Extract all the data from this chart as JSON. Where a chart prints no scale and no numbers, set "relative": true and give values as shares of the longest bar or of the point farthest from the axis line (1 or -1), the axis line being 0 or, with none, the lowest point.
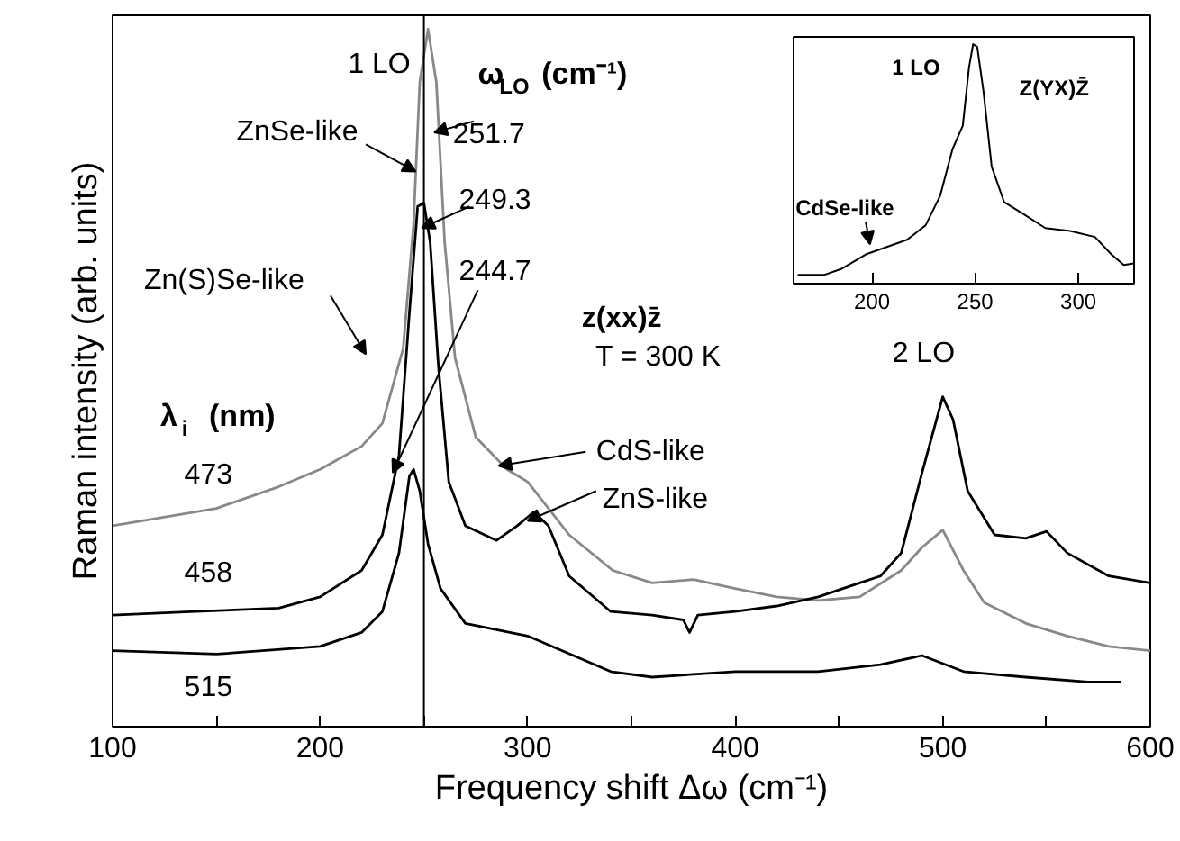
{
  "chart_data": [
    {
      "type": "line",
      "xlabel": "Frequency shift Δω (cm⁻¹)",
      "ylabel": "Raman intensity (arb. units)",
      "relative": true,
      "xlim": [
        100,
        600
      ],
      "xticks": [
        100,
        {
          "value": 150,
          "label": null
        },
        200,
        {
          "value": 250,
          "label": null
        },
        300,
        {
          "value": 350,
          "label": null
        },
        400,
        {
          "value": 450,
          "label": null
        },
        500,
        {
          "value": 550,
          "label": null
        },
        600
      ],
      "ref_lines": [
        {
          "axis": "x",
          "value": 250,
          "color": "#000000"
        }
      ],
      "annotations": [
        "1 LO",
        "ω$_{LO}$ (cm⁻¹)",
        "ZnSe-like",
        "251.7",
        "249.3",
        "244.7",
        "Zn(S)Se-like",
        "λ$_{i}$ (nm)",
        "z(xx)z̄",
        "T = 300 K",
        "2 LO",
        "CdS-like",
        "ZnS-like"
      ],
      "series": [
        {
          "name": "473",
          "color": "#888888",
          "x": [
            100,
            150,
            180,
            200,
            220,
            230,
            240,
            245,
            248,
            252,
            256,
            260,
            265,
            275,
            290,
            300,
            320,
            341,
            360,
            380,
            400,
            420,
            440,
            460,
            480,
            490,
            500,
            510,
            520,
            540,
            560,
            580,
            600
          ],
          "values": [
            0.288,
            0.313,
            0.344,
            0.369,
            0.402,
            0.435,
            0.542,
            0.72,
            0.924,
            1.0,
            0.924,
            0.695,
            0.529,
            0.415,
            0.369,
            0.351,
            0.275,
            0.224,
            0.206,
            0.211,
            0.198,
            0.186,
            0.181,
            0.186,
            0.224,
            0.257,
            0.282,
            0.224,
            0.178,
            0.148,
            0.13,
            0.115,
            0.109
          ]
        },
        {
          "name": "458",
          "color": "#000000",
          "x": [
            100,
            140,
            180,
            200,
            220,
            230,
            238,
            243,
            247,
            250,
            253,
            257,
            262,
            270,
            285,
            295,
            303,
            310,
            320,
            340,
            360,
            375,
            378,
            382,
            400,
            420,
            440,
            460,
            470,
            480,
            490,
            500,
            505,
            512,
            525,
            540,
            550,
            560,
            580,
            600
          ],
          "values": [
            0.16,
            0.165,
            0.17,
            0.186,
            0.224,
            0.275,
            0.389,
            0.593,
            0.746,
            0.751,
            0.695,
            0.517,
            0.351,
            0.288,
            0.267,
            0.288,
            0.308,
            0.288,
            0.216,
            0.165,
            0.16,
            0.153,
            0.135,
            0.16,
            0.165,
            0.173,
            0.186,
            0.206,
            0.216,
            0.249,
            0.364,
            0.473,
            0.44,
            0.338,
            0.275,
            0.27,
            0.28,
            0.249,
            0.216,
            0.206
          ]
        },
        {
          "name": "515",
          "color": "#000000",
          "x": [
            100,
            150,
            200,
            220,
            230,
            238,
            243,
            245,
            248,
            252,
            258,
            270,
            300,
            340,
            360,
            400,
            440,
            470,
            490,
            510,
            540,
            570,
            586
          ],
          "values": [
            0.109,
            0.104,
            0.115,
            0.135,
            0.165,
            0.249,
            0.359,
            0.369,
            0.338,
            0.262,
            0.198,
            0.148,
            0.13,
            0.079,
            0.071,
            0.079,
            0.079,
            0.089,
            0.102,
            0.079,
            0.071,
            0.064,
            0.064
          ]
        }
      ]
    },
    {
      "type": "line",
      "relative": true,
      "xlim": [
        162,
        327
      ],
      "xticks": [
        200,
        250,
        300
      ],
      "annotations": [
        "1 LO",
        "Z(YX)Z̄",
        "CdSe-like"
      ],
      "series": [
        {
          "color": "#000000",
          "x": [
            164,
            177,
            185,
            197,
            209,
            217,
            226,
            233,
            239,
            244,
            247,
            249,
            251,
            254,
            258,
            264,
            273,
            284,
            296,
            308,
            316,
            322,
            327
          ],
          "values": [
            0.037,
            0.037,
            0.061,
            0.122,
            0.159,
            0.183,
            0.244,
            0.366,
            0.561,
            0.659,
            0.902,
            1.0,
            0.988,
            0.805,
            0.488,
            0.341,
            0.293,
            0.232,
            0.22,
            0.195,
            0.122,
            0.078,
            0.085
          ]
        }
      ]
    }
  ]
}
